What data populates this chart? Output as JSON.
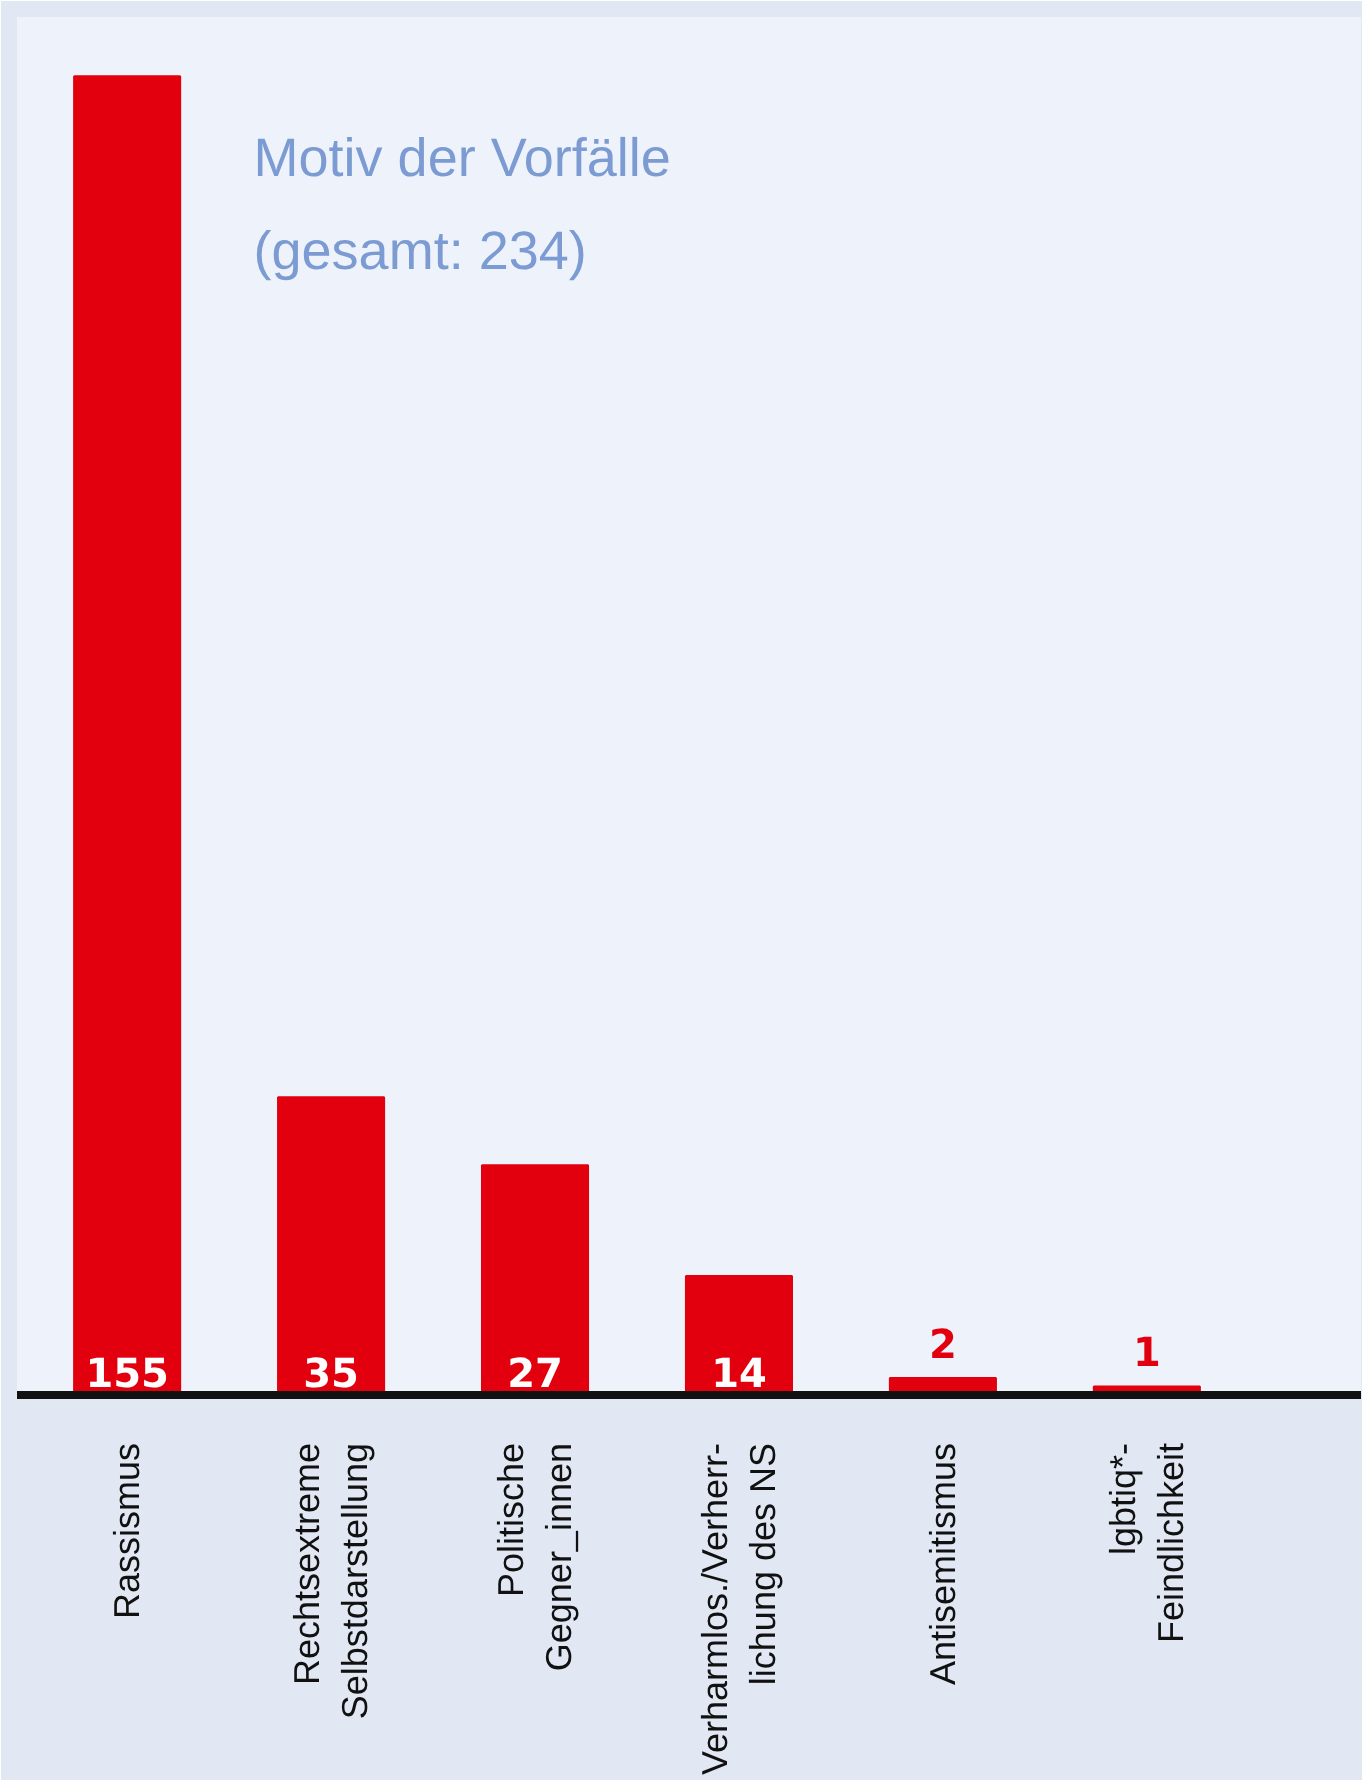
{
  "chart_data": {
    "type": "bar",
    "title": "Motiv der Vorfälle",
    "subtitle": "(gesamt: 234)",
    "categories": [
      "Rassismus",
      "Rechtsextreme\nSelbstdarstellung",
      "Politische\nGegner_innen",
      "Verharmlos./Verherr-\nlichung des NS",
      "Antisemitismus",
      "lgbtiq*-\nFeindlichkeit"
    ],
    "values": [
      155,
      35,
      27,
      14,
      2,
      1
    ],
    "color": "#e2000f",
    "data_labels": true
  }
}
